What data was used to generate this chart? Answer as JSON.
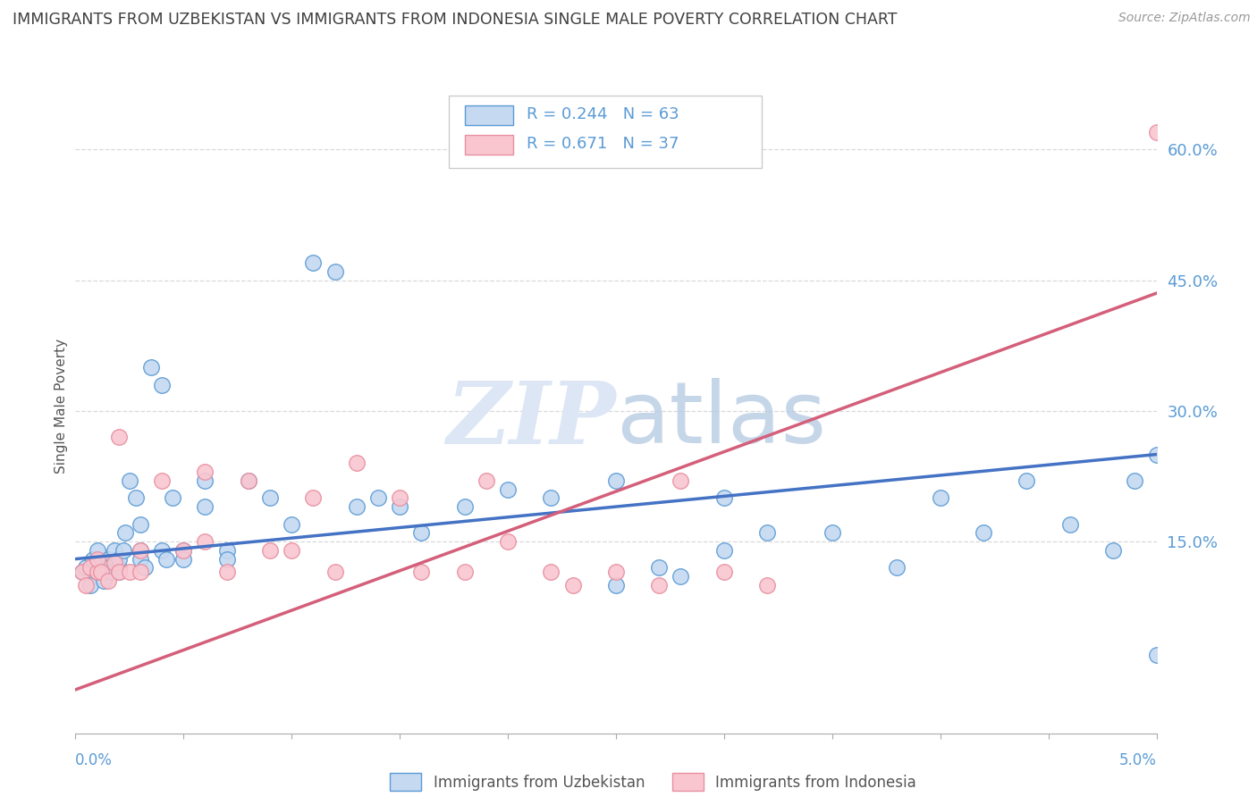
{
  "title": "IMMIGRANTS FROM UZBEKISTAN VS IMMIGRANTS FROM INDONESIA SINGLE MALE POVERTY CORRELATION CHART",
  "source": "Source: ZipAtlas.com",
  "ylabel": "Single Male Poverty",
  "legend_blue_r": "R = 0.244",
  "legend_blue_n": "N = 63",
  "legend_pink_r": "R = 0.671",
  "legend_pink_n": "N = 37",
  "legend_blue_label": "Immigrants from Uzbekistan",
  "legend_pink_label": "Immigrants from Indonesia",
  "blue_fill": "#c5d9f1",
  "pink_fill": "#f9c6d0",
  "blue_edge": "#5b9bd5",
  "pink_edge": "#e88fa0",
  "blue_line_color": "#4472c4",
  "pink_line_color": "#d45f7a",
  "right_axis_color": "#5b9bd5",
  "title_color": "#404040",
  "watermark_color": "#dce6f5",
  "xlim": [
    0.0,
    0.05
  ],
  "ylim": [
    -0.07,
    0.68
  ],
  "right_yticks": [
    0.15,
    0.3,
    0.45,
    0.6
  ],
  "right_yticklabels": [
    "15.0%",
    "30.0%",
    "45.0%",
    "60.0%"
  ],
  "grid_color": "#d9d9d9",
  "blue_line_x": [
    0.0,
    0.05
  ],
  "blue_line_y": [
    0.13,
    0.25
  ],
  "pink_line_x": [
    0.0,
    0.05
  ],
  "pink_line_y": [
    -0.02,
    0.435
  ],
  "blue_scatter_x": [
    0.0003,
    0.0005,
    0.0007,
    0.0008,
    0.001,
    0.001,
    0.0012,
    0.0013,
    0.0015,
    0.0015,
    0.0017,
    0.0018,
    0.002,
    0.002,
    0.002,
    0.0022,
    0.0023,
    0.0025,
    0.0028,
    0.003,
    0.003,
    0.003,
    0.0032,
    0.0035,
    0.004,
    0.004,
    0.0042,
    0.0045,
    0.005,
    0.005,
    0.006,
    0.006,
    0.007,
    0.007,
    0.008,
    0.009,
    0.01,
    0.011,
    0.012,
    0.013,
    0.014,
    0.015,
    0.016,
    0.018,
    0.02,
    0.022,
    0.025,
    0.025,
    0.027,
    0.028,
    0.03,
    0.03,
    0.032,
    0.035,
    0.038,
    0.04,
    0.042,
    0.044,
    0.046,
    0.048,
    0.049,
    0.05,
    0.05
  ],
  "blue_scatter_y": [
    0.115,
    0.12,
    0.1,
    0.13,
    0.14,
    0.115,
    0.125,
    0.105,
    0.13,
    0.12,
    0.115,
    0.14,
    0.12,
    0.115,
    0.13,
    0.14,
    0.16,
    0.22,
    0.2,
    0.14,
    0.13,
    0.17,
    0.12,
    0.35,
    0.33,
    0.14,
    0.13,
    0.2,
    0.14,
    0.13,
    0.22,
    0.19,
    0.14,
    0.13,
    0.22,
    0.2,
    0.17,
    0.47,
    0.46,
    0.19,
    0.2,
    0.19,
    0.16,
    0.19,
    0.21,
    0.2,
    0.22,
    0.1,
    0.12,
    0.11,
    0.2,
    0.14,
    0.16,
    0.16,
    0.12,
    0.2,
    0.16,
    0.22,
    0.17,
    0.14,
    0.22,
    0.25,
    0.02
  ],
  "pink_scatter_x": [
    0.0003,
    0.0005,
    0.0007,
    0.001,
    0.001,
    0.0012,
    0.0015,
    0.0018,
    0.002,
    0.002,
    0.0025,
    0.003,
    0.003,
    0.004,
    0.005,
    0.006,
    0.006,
    0.007,
    0.008,
    0.009,
    0.01,
    0.011,
    0.012,
    0.013,
    0.015,
    0.016,
    0.018,
    0.019,
    0.02,
    0.022,
    0.023,
    0.025,
    0.027,
    0.028,
    0.03,
    0.032,
    0.05
  ],
  "pink_scatter_y": [
    0.115,
    0.1,
    0.12,
    0.115,
    0.13,
    0.115,
    0.105,
    0.125,
    0.115,
    0.27,
    0.115,
    0.14,
    0.115,
    0.22,
    0.14,
    0.23,
    0.15,
    0.115,
    0.22,
    0.14,
    0.14,
    0.2,
    0.115,
    0.24,
    0.2,
    0.115,
    0.115,
    0.22,
    0.15,
    0.115,
    0.1,
    0.115,
    0.1,
    0.22,
    0.115,
    0.1,
    0.62
  ]
}
